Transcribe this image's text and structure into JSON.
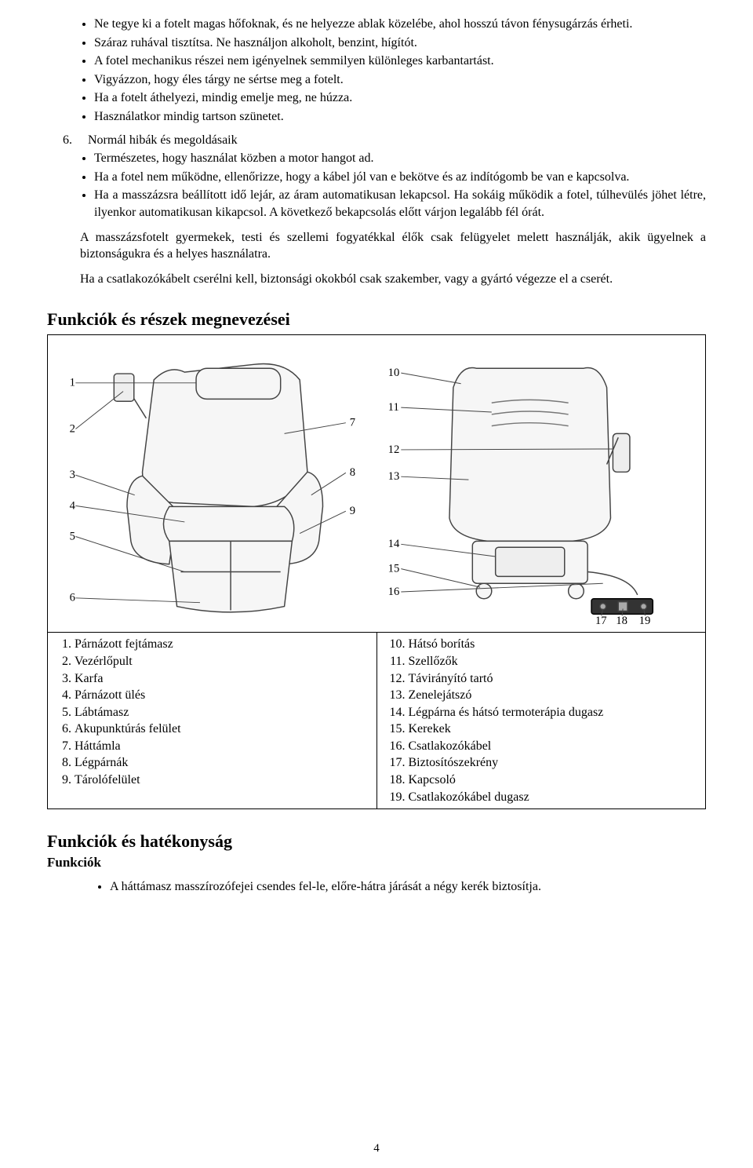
{
  "warnings": {
    "bullets_a": [
      "Ne tegye ki a fotelt magas hőfoknak, és ne helyezze ablak közelébe, ahol hosszú távon fénysugárzás érheti.",
      "Száraz ruhával tisztítsa. Ne használjon alkoholt, benzint, hígítót.",
      "A fotel mechanikus részei nem igényelnek semmilyen különleges karbantartást.",
      "Vigyázzon, hogy éles tárgy ne sértse meg a fotelt.",
      "Ha a fotelt áthelyezi, mindig emelje meg, ne húzza.",
      "Használatkor mindig tartson szünetet."
    ],
    "six_prefix": "6.",
    "six_text": "Normál hibák és megoldásaik",
    "bullets_b": [
      "Természetes, hogy használat közben a motor hangot ad.",
      "Ha a fotel nem működne, ellenőrizze, hogy a kábel jól van e bekötve és az indítógomb be van e kapcsolva.",
      "Ha a masszázsra beállított idő lejár, az áram automatikusan lekapcsol. Ha sokáig működik a fotel, túlhevülés jöhet létre, ilyenkor automatikusan kikapcsol. A következő bekapcsolás előtt várjon legalább fél órát."
    ],
    "para1": "A masszázsfotelt gyermekek, testi és szellemi fogyatékkal élők csak felügyelet melett használják, akik ügyelnek a biztonságukra és a helyes használatra.",
    "para2": "Ha a csatlakozókábelt cserélni kell, biztonsági okokból csak szakember, vagy a gyártó végezze el a cserét."
  },
  "section1_title": "Funkciók és részek megnevezései",
  "diagram": {
    "left_nums": [
      1,
      2,
      3,
      4,
      5,
      6
    ],
    "left_lines": [
      7,
      8,
      9
    ],
    "right_nums": [
      10,
      11,
      12,
      13,
      14,
      15,
      16
    ],
    "bottom_nums": [
      17,
      18,
      19
    ],
    "chair_color": "#6a6a6a",
    "line_color": "#444444"
  },
  "parts_left": [
    "Párnázott fejtámasz",
    "Vezérlőpult",
    "Karfa",
    "Párnázott ülés",
    "Lábtámasz",
    "Akupunktúrás felület",
    "Háttámla",
    "Légpárnák",
    "Tárolófelület"
  ],
  "parts_right_start": 10,
  "parts_right": [
    "Hátsó borítás",
    "Szellőzők",
    "Távirányító tartó",
    "Zenelejátszó",
    "Légpárna és hátsó termoterápia dugasz",
    "Kerekek",
    "Csatlakozókábel",
    "Biztosítószekrény",
    "Kapcsoló",
    "Csatlakozókábel dugasz"
  ],
  "section2_title": "Funkciók és hatékonyság",
  "section2_sub": "Funkciók",
  "functions_bullets": [
    "A háttámasz masszírozófejei csendes fel-le, előre-hátra járását a négy kerék biztosítja."
  ],
  "page_number": "4"
}
